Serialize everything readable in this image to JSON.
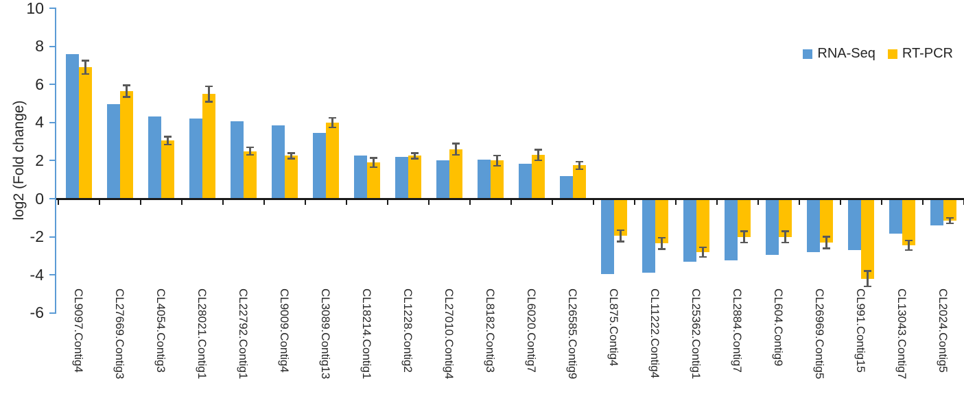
{
  "chart_data": {
    "type": "bar",
    "title": "",
    "xlabel": "",
    "ylabel": "log2 (Fold change)",
    "ylim": [
      -6,
      10
    ],
    "y_ticks": [
      10,
      8,
      6,
      4,
      2,
      0,
      -2,
      -4,
      -6
    ],
    "grid": false,
    "legend_position": "top-right",
    "error_bars": "symmetric caps on RT-PCR series only",
    "categories": [
      "CL9097.Contig4",
      "CL27669.Contig3",
      "CL4054.Contig3",
      "CL28021.Contig1",
      "CL22792.Contig1",
      "CL9009.Contig4",
      "CL3089.Contig13",
      "CL18214.Contig1",
      "CL1228.Contig2",
      "CL27010.Contig4",
      "CL8182.Contig3",
      "CL6020.Contig7",
      "CL26585.Contig9",
      "CL875.Contig4",
      "CL11222.Contig4",
      "CL25362.Contig1",
      "CL2884.Contig7",
      "CL604.Contig9",
      "CL26969.Contig5",
      "CL991.Contig15",
      "CL13043.Contig7",
      "CL2024.Contig5"
    ],
    "series": [
      {
        "name": "RNA-Seq",
        "color": "#5B9BD5",
        "values": [
          7.6,
          4.95,
          4.3,
          4.2,
          4.05,
          3.85,
          3.45,
          2.25,
          2.2,
          2.0,
          2.05,
          1.85,
          1.2,
          -3.95,
          -3.9,
          -3.3,
          -3.25,
          -2.95,
          -2.8,
          -2.7,
          -1.85,
          -1.4
        ]
      },
      {
        "name": "RT-PCR",
        "color": "#FFC000",
        "values": [
          6.9,
          5.65,
          3.05,
          5.5,
          2.5,
          2.25,
          4.0,
          1.9,
          2.25,
          2.6,
          2.0,
          2.3,
          1.75,
          -1.95,
          -2.35,
          -2.8,
          -2.0,
          -2.0,
          -2.3,
          -4.2,
          -2.45,
          -1.15
        ],
        "errors": [
          0.35,
          0.3,
          0.2,
          0.4,
          0.2,
          0.15,
          0.25,
          0.25,
          0.15,
          0.3,
          0.27,
          0.28,
          0.2,
          0.3,
          0.3,
          0.25,
          0.3,
          0.3,
          0.3,
          0.4,
          0.25,
          0.15
        ]
      }
    ],
    "colors": {
      "y_axis": "#5B9BD5",
      "x_axis": "#1a1a1a",
      "error_bar": "#595959",
      "text": "#262626",
      "background": "#ffffff"
    }
  }
}
